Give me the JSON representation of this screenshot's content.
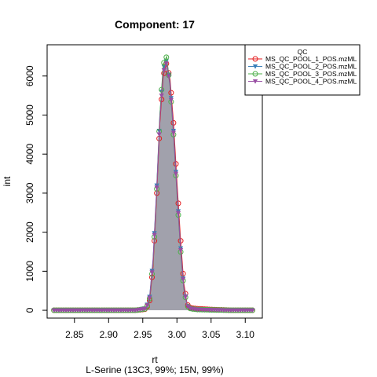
{
  "chart_data": {
    "type": "line",
    "title": "Component: 17",
    "xlabel": "rt",
    "ylabel": "int",
    "subtitle": "L-Serine (13C3, 99%; 15N, 99%)",
    "xlim": [
      2.81,
      3.125
    ],
    "ylim": [
      -200,
      6800
    ],
    "xticks": [
      2.85,
      2.9,
      2.95,
      3.0,
      3.05,
      3.1
    ],
    "yticks": [
      0,
      1000,
      2000,
      3000,
      4000,
      5000,
      6000
    ],
    "xtick_labels": [
      "2.85",
      "2.90",
      "2.95",
      "3.00",
      "3.05",
      "3.10"
    ],
    "ytick_labels": [
      "0",
      "1000",
      "2000",
      "3000",
      "4000",
      "5000",
      "6000"
    ],
    "grid": false,
    "legend_title": "QC",
    "legend_position": "top-right",
    "series": [
      {
        "name": "MS_QC_POOL_1_POS.mzML",
        "color": "#e41a1c",
        "marker": "circle",
        "x": [
          2.82,
          2.85,
          2.9,
          2.94,
          2.955,
          2.96,
          2.965,
          2.97,
          2.975,
          2.98,
          2.985,
          2.99,
          2.995,
          3.0,
          3.005,
          3.01,
          3.015,
          3.02,
          3.03,
          3.05,
          3.08,
          3.113
        ],
        "y": [
          0,
          0,
          0,
          0,
          30,
          250,
          1100,
          2800,
          4800,
          6000,
          6350,
          5900,
          4800,
          3300,
          1900,
          700,
          150,
          60,
          40,
          20,
          0,
          0
        ]
      },
      {
        "name": "MS_QC_POOL_2_POS.mzML",
        "color": "#377eb8",
        "marker": "triangle-down",
        "x": [
          2.82,
          2.85,
          2.9,
          2.94,
          2.955,
          2.96,
          2.965,
          2.97,
          2.975,
          2.98,
          2.985,
          2.99,
          2.995,
          3.0,
          3.005,
          3.01,
          3.015,
          3.02,
          3.03,
          3.05,
          3.08,
          3.113
        ],
        "y": [
          0,
          0,
          0,
          0,
          60,
          350,
          1300,
          3000,
          5000,
          6200,
          6400,
          5800,
          4600,
          3100,
          1700,
          600,
          120,
          40,
          20,
          10,
          0,
          0
        ]
      },
      {
        "name": "MS_QC_POOL_3_POS.mzML",
        "color": "#4daf4a",
        "marker": "circle",
        "x": [
          2.82,
          2.85,
          2.9,
          2.94,
          2.955,
          2.96,
          2.965,
          2.97,
          2.975,
          2.98,
          2.985,
          2.99,
          2.995,
          3.0,
          3.005,
          3.01,
          3.015,
          3.02,
          3.03,
          3.05,
          3.08,
          3.113
        ],
        "y": [
          0,
          0,
          0,
          0,
          40,
          300,
          1200,
          2900,
          5000,
          6300,
          6500,
          5700,
          4500,
          3000,
          1600,
          550,
          110,
          40,
          20,
          10,
          0,
          0
        ]
      },
      {
        "name": "MS_QC_POOL_4_POS.mzML",
        "color": "#984ea3",
        "marker": "triangle-down",
        "x": [
          2.82,
          2.85,
          2.9,
          2.94,
          2.955,
          2.96,
          2.965,
          2.97,
          2.975,
          2.98,
          2.985,
          2.99,
          2.995,
          3.0,
          3.005,
          3.01,
          3.015,
          3.02,
          3.03,
          3.05,
          3.08,
          3.113
        ],
        "y": [
          0,
          0,
          0,
          0,
          50,
          320,
          1250,
          2950,
          4900,
          6100,
          6350,
          5750,
          4550,
          3050,
          1650,
          580,
          115,
          45,
          20,
          10,
          0,
          0
        ]
      }
    ],
    "fill_color": "#8c8c9a"
  }
}
